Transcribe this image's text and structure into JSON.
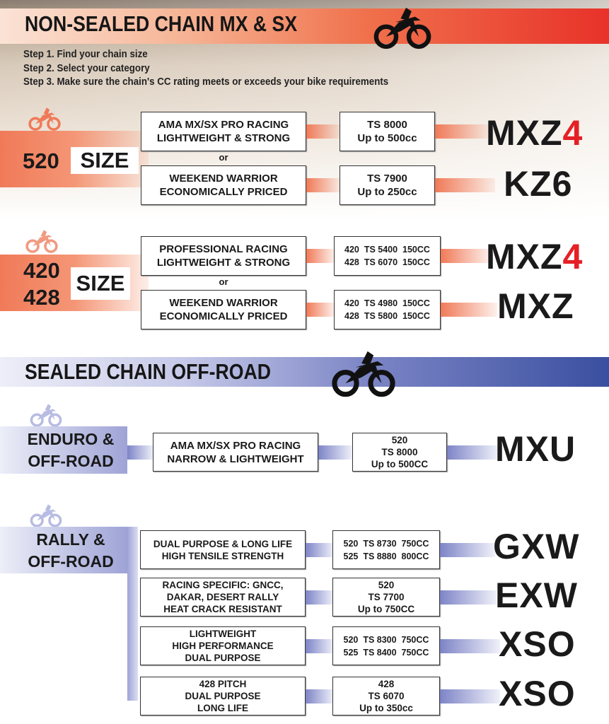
{
  "non_sealed": {
    "title": "NON-SEALED CHAIN   MX & SX",
    "steps": [
      "Step 1. Find your chain size",
      "Step 2. Select your category",
      "Step 3. Make sure the chain's CC rating meets or exceeds your bike requirements"
    ],
    "size520": {
      "number": "520",
      "size_label": "SIZE",
      "or": "or",
      "rows": [
        {
          "category": [
            "AMA MX/SX PRO RACING",
            "LIGHTWEIGHT & STRONG"
          ],
          "spec": [
            "TS 8000",
            "Up to 500cc"
          ],
          "product": "MXZ",
          "product_suffix": "4"
        },
        {
          "category": [
            "WEEKEND WARRIOR",
            "ECONOMICALLY PRICED"
          ],
          "spec": [
            "TS 7900",
            "Up to 250cc"
          ],
          "product": "KZ6"
        }
      ]
    },
    "size420": {
      "numbers": [
        "420",
        "428"
      ],
      "size_label": "SIZE",
      "or": "or",
      "rows": [
        {
          "category": [
            "PROFESSIONAL RACING",
            "LIGHTWEIGHT & STRONG"
          ],
          "spec": [
            "420  TS 5400  150CC",
            "428  TS 6070  150CC"
          ],
          "product": "MXZ",
          "product_suffix": "4"
        },
        {
          "category": [
            "WEEKEND WARRIOR",
            "ECONOMICALLY PRICED"
          ],
          "spec": [
            "420  TS 4980  150CC",
            "428  TS 5800  150CC"
          ],
          "product": "MXZ"
        }
      ]
    }
  },
  "sealed": {
    "title": "SEALED CHAIN   OFF-ROAD",
    "enduro": {
      "label": [
        "ENDURO &",
        "OFF-ROAD"
      ],
      "row": {
        "category": [
          "AMA MX/SX PRO RACING",
          "NARROW & LIGHTWEIGHT"
        ],
        "spec": [
          "520",
          "TS 8000",
          "Up to 500CC"
        ],
        "product": "MXU"
      }
    },
    "rally": {
      "label": [
        "RALLY &",
        "OFF-ROAD"
      ],
      "rows": [
        {
          "category": [
            "DUAL PURPOSE & LONG LIFE",
            "HIGH TENSILE STRENGTH"
          ],
          "spec": [
            "520  TS 8730  750CC",
            "525  TS 8880  800CC"
          ],
          "product": "GXW"
        },
        {
          "category": [
            "RACING SPECIFIC: GNCC,",
            "DAKAR, DESERT RALLY",
            "HEAT CRACK RESISTANT"
          ],
          "spec": [
            "520",
            "TS 7700",
            "Up to 750CC"
          ],
          "product": "EXW"
        },
        {
          "category": [
            "LIGHTWEIGHT",
            "HIGH PERFORMANCE",
            "DUAL PURPOSE"
          ],
          "spec": [
            "520  TS 8300  750CC",
            "525  TS 8400  750CC"
          ],
          "product": "XSO"
        },
        {
          "category": [
            "428 PITCH",
            "DUAL PURPOSE",
            "LONG LIFE"
          ],
          "spec": [
            "428",
            "TS 6070",
            "Up to 350cc"
          ],
          "product": "XSO"
        }
      ]
    }
  },
  "colors": {
    "accent_red": "#e8322a",
    "accent_blue": "#3a4fa0",
    "product_suffix": "#e42026"
  }
}
